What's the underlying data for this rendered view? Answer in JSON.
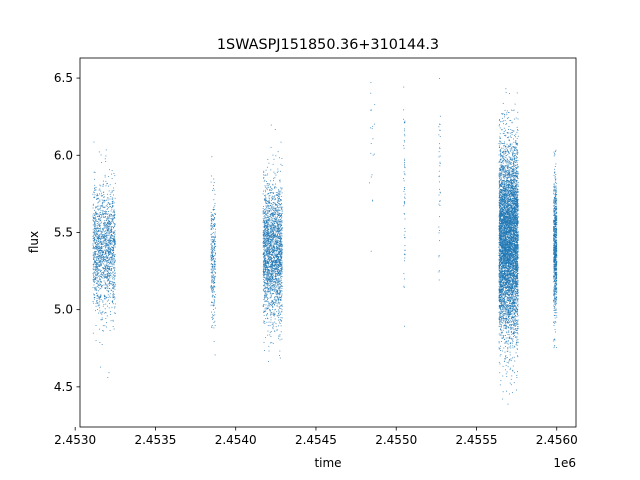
{
  "chart_data": {
    "type": "scatter",
    "title": "1SWASPJ151850.36+310144.3",
    "xlabel": "time",
    "ylabel": "flux",
    "x_offset_label": "1e6",
    "xlim": [
      2.45303,
      2.45612
    ],
    "ylim": [
      4.24,
      6.63
    ],
    "xticks": [
      2.453,
      2.4535,
      2.454,
      2.4545,
      2.455,
      2.4555,
      2.456
    ],
    "xtick_labels": [
      "2.4530",
      "2.4535",
      "2.4540",
      "2.4545",
      "2.4550",
      "2.4555",
      "2.4560"
    ],
    "yticks": [
      4.5,
      5.0,
      5.5,
      6.0,
      6.5
    ],
    "ytick_labels": [
      "4.5",
      "5.0",
      "5.5",
      "6.0",
      "6.5"
    ],
    "grid": false,
    "legend": "none",
    "marker_color": "#1f77b4",
    "series": [
      {
        "clusters": [
          {
            "x_center": 2.45318,
            "x_width": 0.00014,
            "y_mean": 5.4,
            "y_sd": 0.2,
            "n": 1500
          },
          {
            "x_center": 2.45386,
            "x_width": 3e-05,
            "y_mean": 5.35,
            "y_sd": 0.2,
            "n": 300
          },
          {
            "x_center": 2.45423,
            "x_width": 0.00012,
            "y_mean": 5.37,
            "y_sd": 0.22,
            "n": 2200
          },
          {
            "x_center": 2.45485,
            "x_width": 4e-05,
            "y_mean": 5.95,
            "y_sd": 0.25,
            "n": 20
          },
          {
            "x_center": 2.45505,
            "x_width": 1e-05,
            "y_mean": 5.7,
            "y_sd": 0.35,
            "n": 60
          },
          {
            "x_center": 2.45527,
            "x_width": 1e-05,
            "y_mean": 5.8,
            "y_sd": 0.35,
            "n": 40
          },
          {
            "x_center": 2.4557,
            "x_width": 0.00012,
            "y_mean": 5.45,
            "y_sd": 0.3,
            "n": 6000
          },
          {
            "x_center": 2.45599,
            "x_width": 2e-05,
            "y_mean": 5.4,
            "y_sd": 0.22,
            "n": 800
          }
        ]
      }
    ]
  }
}
